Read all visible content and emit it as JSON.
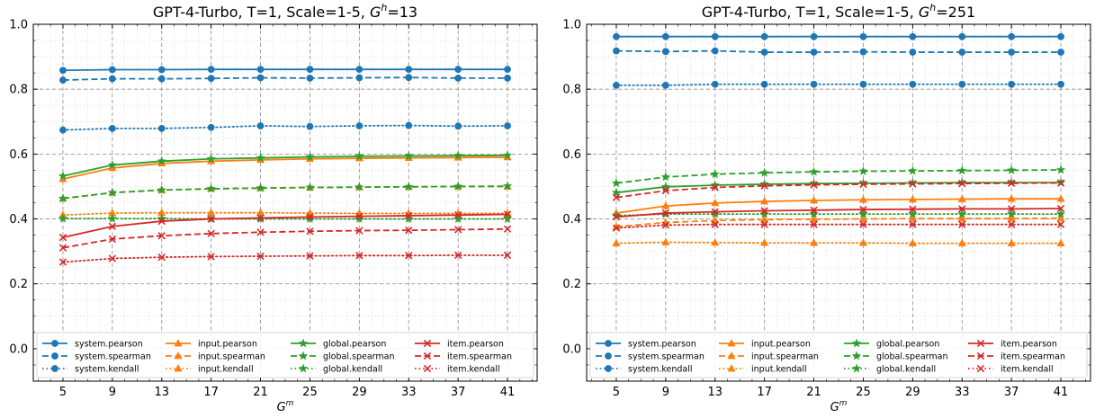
{
  "colors": {
    "system": "#1f77b4",
    "input": "#ff7f0e",
    "global": "#2ca02c",
    "item": "#d62728"
  },
  "chart_data": [
    {
      "type": "line",
      "title_prefix": "GPT-4-Turbo, T=1, Scale=1-5, ",
      "title_sym": "G",
      "title_sup": "h",
      "title_suffix": "=13",
      "xlabel_sym": "G",
      "xlabel_sup": "m",
      "ylabel": "",
      "x": [
        5,
        9,
        13,
        17,
        21,
        25,
        29,
        33,
        37,
        41
      ],
      "xticks": [
        "5",
        "9",
        "13",
        "17",
        "21",
        "25",
        "29",
        "33",
        "37",
        "41"
      ],
      "xlim": [
        2.6,
        43.4
      ],
      "ylim": [
        -0.1,
        1.0
      ],
      "yticks": [
        "0.0",
        "0.2",
        "0.4",
        "0.6",
        "0.8",
        "1.0"
      ],
      "grid": true,
      "legend_position": "bottom",
      "series": [
        {
          "name": "system.pearson",
          "group": "system",
          "style": "solid",
          "marker": "circle",
          "values": [
            0.858,
            0.86,
            0.86,
            0.861,
            0.861,
            0.861,
            0.861,
            0.861,
            0.861,
            0.861
          ]
        },
        {
          "name": "system.spearman",
          "group": "system",
          "style": "dashed",
          "marker": "circle",
          "values": [
            0.828,
            0.832,
            0.832,
            0.833,
            0.835,
            0.834,
            0.835,
            0.836,
            0.834,
            0.834
          ]
        },
        {
          "name": "system.kendall",
          "group": "system",
          "style": "dotted",
          "marker": "circle",
          "values": [
            0.674,
            0.679,
            0.679,
            0.682,
            0.687,
            0.685,
            0.687,
            0.688,
            0.686,
            0.687
          ]
        },
        {
          "name": "input.pearson",
          "group": "input",
          "style": "solid",
          "marker": "triangle",
          "values": [
            0.523,
            0.557,
            0.571,
            0.578,
            0.582,
            0.585,
            0.587,
            0.588,
            0.589,
            0.59
          ]
        },
        {
          "name": "input.spearman",
          "group": "input",
          "style": "dashed",
          "marker": "triangle",
          "values": [
            0.463,
            0.481,
            0.489,
            0.493,
            0.495,
            0.497,
            0.498,
            0.499,
            0.5,
            0.5
          ]
        },
        {
          "name": "input.kendall",
          "group": "input",
          "style": "dotted",
          "marker": "triangle",
          "values": [
            0.412,
            0.418,
            0.419,
            0.419,
            0.419,
            0.418,
            0.417,
            0.417,
            0.417,
            0.417
          ]
        },
        {
          "name": "global.pearson",
          "group": "global",
          "style": "solid",
          "marker": "star",
          "values": [
            0.532,
            0.566,
            0.578,
            0.585,
            0.588,
            0.591,
            0.593,
            0.594,
            0.595,
            0.596
          ]
        },
        {
          "name": "global.spearman",
          "group": "global",
          "style": "dashed",
          "marker": "star",
          "values": [
            0.463,
            0.481,
            0.489,
            0.493,
            0.495,
            0.497,
            0.498,
            0.499,
            0.5,
            0.501
          ]
        },
        {
          "name": "global.kendall",
          "group": "global",
          "style": "dotted",
          "marker": "star",
          "values": [
            0.401,
            0.401,
            0.401,
            0.4,
            0.4,
            0.4,
            0.4,
            0.4,
            0.4,
            0.4
          ]
        },
        {
          "name": "item.pearson",
          "group": "item",
          "style": "solid",
          "marker": "x",
          "values": [
            0.343,
            0.377,
            0.393,
            0.4,
            0.403,
            0.406,
            0.408,
            0.41,
            0.412,
            0.414
          ]
        },
        {
          "name": "item.spearman",
          "group": "item",
          "style": "dashed",
          "marker": "x",
          "values": [
            0.311,
            0.338,
            0.348,
            0.355,
            0.359,
            0.362,
            0.364,
            0.365,
            0.367,
            0.369
          ]
        },
        {
          "name": "item.kendall",
          "group": "item",
          "style": "dotted",
          "marker": "x",
          "values": [
            0.267,
            0.278,
            0.282,
            0.284,
            0.285,
            0.286,
            0.287,
            0.287,
            0.288,
            0.288
          ]
        }
      ]
    },
    {
      "type": "line",
      "title_prefix": "GPT-4-Turbo, T=1, Scale=1-5, ",
      "title_sym": "G",
      "title_sup": "h",
      "title_suffix": "=251",
      "xlabel_sym": "G",
      "xlabel_sup": "m",
      "ylabel": "",
      "x": [
        5,
        9,
        13,
        17,
        21,
        25,
        29,
        33,
        37,
        41
      ],
      "xticks": [
        "5",
        "9",
        "13",
        "17",
        "21",
        "25",
        "29",
        "33",
        "37",
        "41"
      ],
      "xlim": [
        2.6,
        43.4
      ],
      "ylim": [
        -0.1,
        1.0
      ],
      "yticks": [
        "0.0",
        "0.2",
        "0.4",
        "0.6",
        "0.8",
        "1.0"
      ],
      "grid": true,
      "legend_position": "bottom",
      "series": [
        {
          "name": "system.pearson",
          "group": "system",
          "style": "solid",
          "marker": "circle",
          "values": [
            0.962,
            0.962,
            0.962,
            0.962,
            0.962,
            0.962,
            0.962,
            0.962,
            0.962,
            0.962
          ]
        },
        {
          "name": "system.spearman",
          "group": "system",
          "style": "dashed",
          "marker": "circle",
          "values": [
            0.918,
            0.916,
            0.918,
            0.914,
            0.914,
            0.915,
            0.914,
            0.914,
            0.914,
            0.914
          ]
        },
        {
          "name": "system.kendall",
          "group": "system",
          "style": "dotted",
          "marker": "circle",
          "values": [
            0.812,
            0.812,
            0.815,
            0.815,
            0.815,
            0.815,
            0.815,
            0.815,
            0.815,
            0.815
          ]
        },
        {
          "name": "input.pearson",
          "group": "input",
          "style": "solid",
          "marker": "triangle",
          "values": [
            0.418,
            0.44,
            0.449,
            0.454,
            0.457,
            0.459,
            0.46,
            0.461,
            0.462,
            0.462
          ]
        },
        {
          "name": "input.spearman",
          "group": "input",
          "style": "dashed",
          "marker": "triangle",
          "values": [
            0.376,
            0.389,
            0.395,
            0.398,
            0.399,
            0.4,
            0.401,
            0.401,
            0.401,
            0.402
          ]
        },
        {
          "name": "input.kendall",
          "group": "input",
          "style": "dotted",
          "marker": "triangle",
          "values": [
            0.325,
            0.328,
            0.327,
            0.326,
            0.326,
            0.326,
            0.325,
            0.325,
            0.325,
            0.325
          ]
        },
        {
          "name": "global.pearson",
          "group": "global",
          "style": "solid",
          "marker": "star",
          "values": [
            0.481,
            0.499,
            0.504,
            0.507,
            0.509,
            0.51,
            0.511,
            0.512,
            0.512,
            0.512
          ]
        },
        {
          "name": "global.spearman",
          "group": "global",
          "style": "dashed",
          "marker": "star",
          "values": [
            0.51,
            0.529,
            0.538,
            0.542,
            0.545,
            0.547,
            0.548,
            0.549,
            0.55,
            0.551
          ]
        },
        {
          "name": "global.kendall",
          "group": "global",
          "style": "dotted",
          "marker": "star",
          "values": [
            0.41,
            0.415,
            0.415,
            0.415,
            0.415,
            0.415,
            0.415,
            0.415,
            0.415,
            0.415
          ]
        },
        {
          "name": "item.pearson",
          "group": "item",
          "style": "solid",
          "marker": "x",
          "values": [
            0.406,
            0.418,
            0.422,
            0.425,
            0.427,
            0.429,
            0.43,
            0.431,
            0.431,
            0.432
          ]
        },
        {
          "name": "item.spearman",
          "group": "item",
          "style": "dashed",
          "marker": "x",
          "values": [
            0.466,
            0.487,
            0.497,
            0.502,
            0.505,
            0.507,
            0.508,
            0.509,
            0.51,
            0.511
          ]
        },
        {
          "name": "item.kendall",
          "group": "item",
          "style": "dotted",
          "marker": "x",
          "values": [
            0.372,
            0.381,
            0.383,
            0.383,
            0.383,
            0.383,
            0.383,
            0.383,
            0.383,
            0.383
          ]
        }
      ]
    }
  ]
}
